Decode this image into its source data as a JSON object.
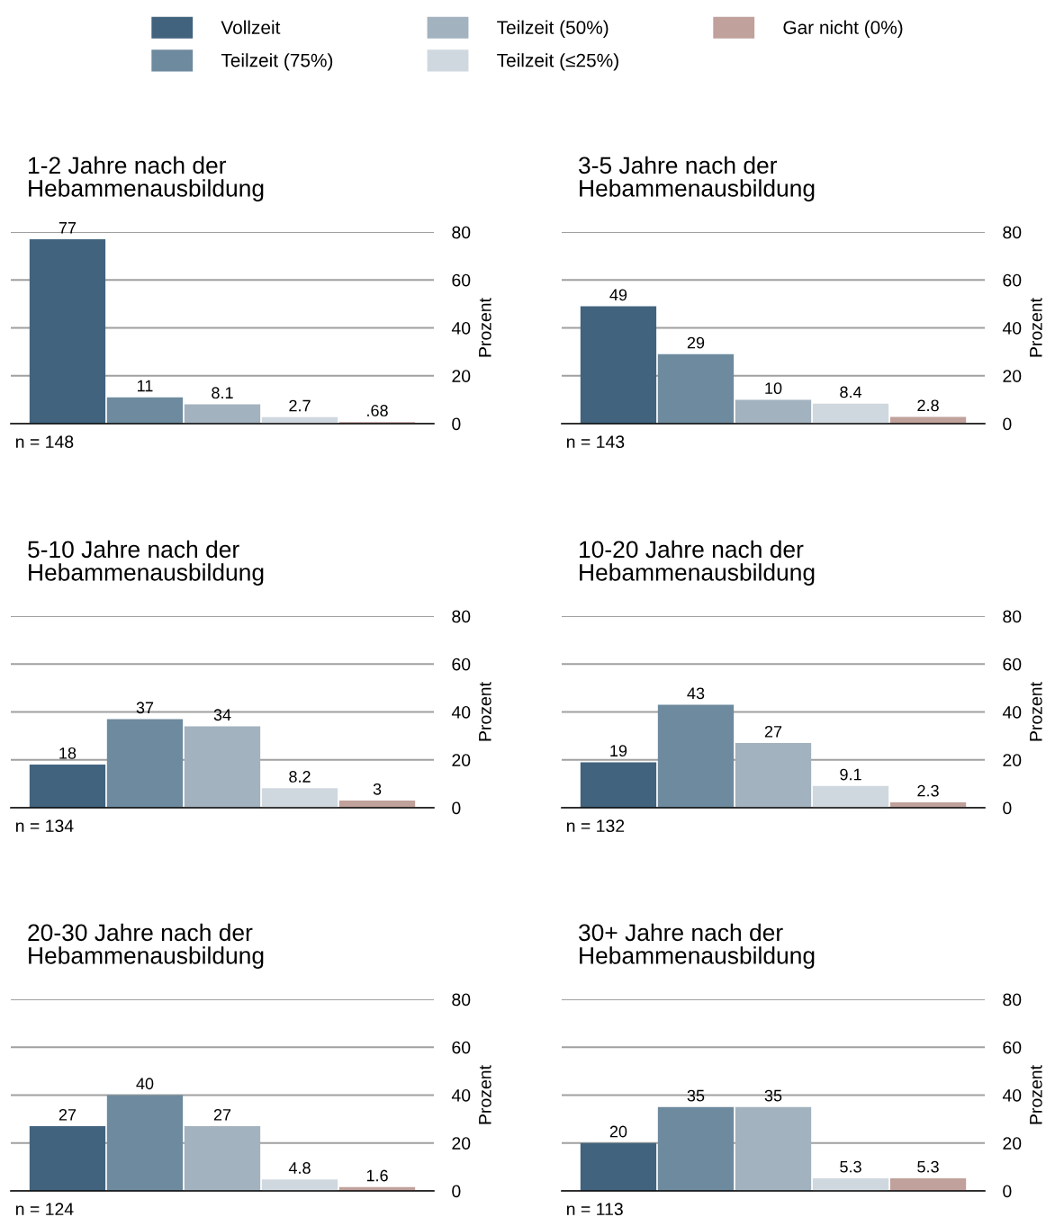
{
  "chart_data": [
    {
      "type": "bar",
      "title": "1-2 Jahre nach der\nHebammenausbildung",
      "categories": [
        null
      ],
      "ylabel": "Prozent",
      "ylim": [
        0,
        80
      ],
      "yticks": [
        0,
        20,
        40,
        60,
        80
      ],
      "grid": "y",
      "tick_labels": "y",
      "legend": "top",
      "annotations": [
        "n = 148"
      ],
      "series": [
        {
          "name": "Vollzeit",
          "color": "#41637e",
          "values": [
            77
          ],
          "value_labels": [
            "77"
          ]
        },
        {
          "name": "Teilzeit (75%)",
          "color": "#6e8a9e",
          "values": [
            11
          ],
          "value_labels": [
            "11"
          ]
        },
        {
          "name": "Teilzeit (50%)",
          "color": "#a2b2be",
          "values": [
            8.1
          ],
          "value_labels": [
            "8.1"
          ]
        },
        {
          "name": "Teilzeit (≤25%)",
          "color": "#d0d8df",
          "values": [
            2.7
          ],
          "value_labels": [
            "2.7"
          ]
        },
        {
          "name": "Gar nicht (0%)",
          "color": "#c0a19b",
          "values": [
            0.68
          ],
          "value_labels": [
            ".68"
          ]
        }
      ]
    },
    {
      "type": "bar",
      "title": "3-5 Jahre nach der\nHebammenausbildung",
      "categories": [
        null
      ],
      "ylabel": "Prozent",
      "ylim": [
        0,
        80
      ],
      "yticks": [
        0,
        20,
        40,
        60,
        80
      ],
      "grid": "y",
      "tick_labels": "y",
      "annotations": [
        "n = 143"
      ],
      "series": [
        {
          "color": "#41637e",
          "values": [
            49
          ],
          "value_labels": [
            "49"
          ]
        },
        {
          "color": "#6e8a9e",
          "values": [
            29
          ],
          "value_labels": [
            "29"
          ]
        },
        {
          "color": "#a2b2be",
          "values": [
            10
          ],
          "value_labels": [
            "10"
          ]
        },
        {
          "color": "#d0d8df",
          "values": [
            8.4
          ],
          "value_labels": [
            "8.4"
          ]
        },
        {
          "color": "#c0a19b",
          "values": [
            2.8
          ],
          "value_labels": [
            "2.8"
          ]
        }
      ]
    },
    {
      "type": "bar",
      "title": "5-10 Jahre nach der\nHebammenausbildung",
      "categories": [
        null
      ],
      "ylabel": "Prozent",
      "ylim": [
        0,
        80
      ],
      "yticks": [
        0,
        20,
        40,
        60,
        80
      ],
      "grid": "y",
      "tick_labels": "y",
      "annotations": [
        "n = 134"
      ],
      "series": [
        {
          "color": "#41637e",
          "values": [
            18
          ],
          "value_labels": [
            "18"
          ]
        },
        {
          "color": "#6e8a9e",
          "values": [
            37
          ],
          "value_labels": [
            "37"
          ]
        },
        {
          "color": "#a2b2be",
          "values": [
            34
          ],
          "value_labels": [
            "34"
          ]
        },
        {
          "color": "#d0d8df",
          "values": [
            8.2
          ],
          "value_labels": [
            "8.2"
          ]
        },
        {
          "color": "#c0a19b",
          "values": [
            3
          ],
          "value_labels": [
            "3"
          ]
        }
      ]
    },
    {
      "type": "bar",
      "title": "10-20 Jahre nach der\nHebammenausbildung",
      "categories": [
        null
      ],
      "ylabel": "Prozent",
      "ylim": [
        0,
        80
      ],
      "yticks": [
        0,
        20,
        40,
        60,
        80
      ],
      "grid": "y",
      "tick_labels": "y",
      "annotations": [
        "n = 132"
      ],
      "series": [
        {
          "color": "#41637e",
          "values": [
            19
          ],
          "value_labels": [
            "19"
          ]
        },
        {
          "color": "#6e8a9e",
          "values": [
            43
          ],
          "value_labels": [
            "43"
          ]
        },
        {
          "color": "#a2b2be",
          "values": [
            27
          ],
          "value_labels": [
            "27"
          ]
        },
        {
          "color": "#d0d8df",
          "values": [
            9.1
          ],
          "value_labels": [
            "9.1"
          ]
        },
        {
          "color": "#c0a19b",
          "values": [
            2.3
          ],
          "value_labels": [
            "2.3"
          ]
        }
      ]
    },
    {
      "type": "bar",
      "title": "20-30 Jahre nach der\nHebammenausbildung",
      "categories": [
        null
      ],
      "ylabel": "Prozent",
      "ylim": [
        0,
        80
      ],
      "yticks": [
        0,
        20,
        40,
        60,
        80
      ],
      "grid": "y",
      "tick_labels": "y",
      "annotations": [
        "n = 124"
      ],
      "series": [
        {
          "color": "#41637e",
          "values": [
            27
          ],
          "value_labels": [
            "27"
          ]
        },
        {
          "color": "#6e8a9e",
          "values": [
            40
          ],
          "value_labels": [
            "40"
          ]
        },
        {
          "color": "#a2b2be",
          "values": [
            27
          ],
          "value_labels": [
            "27"
          ]
        },
        {
          "color": "#d0d8df",
          "values": [
            4.8
          ],
          "value_labels": [
            "4.8"
          ]
        },
        {
          "color": "#c0a19b",
          "values": [
            1.6
          ],
          "value_labels": [
            "1.6"
          ]
        }
      ]
    },
    {
      "type": "bar",
      "title": "30+ Jahre nach der\nHebammenausbildung",
      "categories": [
        null
      ],
      "ylabel": "Prozent",
      "ylim": [
        0,
        80
      ],
      "yticks": [
        0,
        20,
        40,
        60,
        80
      ],
      "grid": "y",
      "tick_labels": "y",
      "annotations": [
        "n = 113"
      ],
      "series": [
        {
          "color": "#41637e",
          "values": [
            20
          ],
          "value_labels": [
            "20"
          ]
        },
        {
          "color": "#6e8a9e",
          "values": [
            35
          ],
          "value_labels": [
            "35"
          ]
        },
        {
          "color": "#a2b2be",
          "values": [
            35
          ],
          "value_labels": [
            "35"
          ]
        },
        {
          "color": "#d0d8df",
          "values": [
            5.3
          ],
          "value_labels": [
            "5.3"
          ]
        },
        {
          "color": "#c0a19b",
          "values": [
            5.3
          ],
          "value_labels": [
            "5.3"
          ]
        }
      ]
    }
  ]
}
